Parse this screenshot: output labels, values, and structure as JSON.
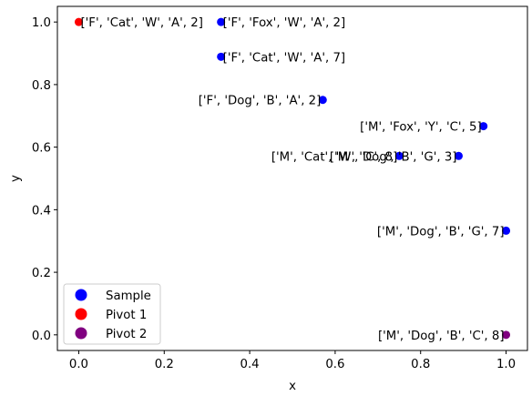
{
  "chart_data": {
    "type": "scatter",
    "title": "",
    "xlabel": "x",
    "ylabel": "y",
    "xlim": [
      -0.05,
      1.05
    ],
    "ylim": [
      -0.05,
      1.05
    ],
    "xticks": [
      "0.0",
      "0.2",
      "0.4",
      "0.6",
      "0.8",
      "1.0"
    ],
    "yticks": [
      "0.0",
      "0.2",
      "0.4",
      "0.6",
      "0.8",
      "1.0"
    ],
    "grid": false,
    "legend_position": "lower-left",
    "series": [
      {
        "name": "Sample",
        "color": "#0000ff",
        "points": [
          {
            "x": 0.333,
            "y": 1.0,
            "label": "['F', 'Fox', 'W', 'A', 2]"
          },
          {
            "x": 0.333,
            "y": 0.889,
            "label": "['F', 'Cat', 'W', 'A', 7]"
          },
          {
            "x": 0.571,
            "y": 0.751,
            "label": "['F', 'Dog', 'B', 'A', 2]"
          },
          {
            "x": 0.947,
            "y": 0.667,
            "label": "['M', 'Fox', 'Y', 'C', 5]"
          },
          {
            "x": 0.75,
            "y": 0.572,
            "label": "['M', 'Cat', 'W', 'C', 8]"
          },
          {
            "x": 0.889,
            "y": 0.572,
            "label": "['M', 'Dog', 'B', 'G', 3]"
          },
          {
            "x": 1.0,
            "y": 0.333,
            "label": "['M', 'Dog', 'B', 'G', 7]"
          }
        ]
      },
      {
        "name": "Pivot 1",
        "color": "#ff0000",
        "points": [
          {
            "x": 0.0,
            "y": 1.0,
            "label": "['F', 'Cat', 'W', 'A', 2]"
          }
        ]
      },
      {
        "name": "Pivot 2",
        "color": "#800080",
        "points": [
          {
            "x": 1.0,
            "y": 0.0,
            "label": "['M', 'Dog', 'B', 'C', 8]"
          }
        ]
      }
    ]
  }
}
